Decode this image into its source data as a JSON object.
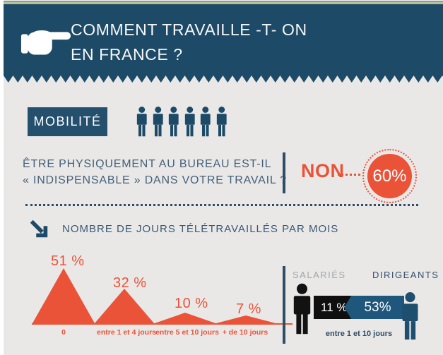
{
  "header": {
    "title_line1": "COMMENT TRAVAILLE -T- ON",
    "title_line2": "EN FRANCE ?"
  },
  "mobility": {
    "label": "MOBILITÉ",
    "people_count": 6,
    "question_line1": "ÊTRE PHYSIQUEMENT AU BUREAU EST-IL",
    "question_line2": "« INDISPENSABLE » DANS VOTRE TRAVAIL ?",
    "answer_label": "NON",
    "answer_value": "60%"
  },
  "telework": {
    "section_title": "NOMBRE DE JOURS TÉLÉTRAVAILLÉS PAR MOIS",
    "comparison": {
      "left_label": "SALARIÉS",
      "right_label": "DIRIGEANTS",
      "left_value": "11 %",
      "right_value": "53%",
      "caption": "entre 1 et 10 jours"
    }
  },
  "chart_data": [
    {
      "type": "bar",
      "mark": "triangle-peaks",
      "title": "NOMBRE DE JOURS TÉLÉTRAVAILLÉS PAR MOIS",
      "categories": [
        "0",
        "entre 1 et 4 jours",
        "entre 5 et 10 jours",
        "+ de 10 jours"
      ],
      "values": [
        51,
        32,
        10,
        7
      ],
      "value_labels": [
        "51 %",
        "32 %",
        "10 %",
        "7 %"
      ],
      "unit": "%",
      "ylim": [
        0,
        51
      ],
      "color": "#eb5338",
      "legend": "none",
      "grid": false
    },
    {
      "type": "bar",
      "title": "entre 1 et 10 jours",
      "categories": [
        "SALARIÉS",
        "DIRIGEANTS"
      ],
      "values": [
        11,
        53
      ],
      "unit": "%",
      "colors": [
        "#0f0f0f",
        "#1f567b"
      ]
    },
    {
      "type": "pie",
      "title": "ÊTRE PHYSIQUEMENT AU BUREAU EST-IL « INDISPENSABLE » DANS VOTRE TRAVAIL ? — NON",
      "values": [
        60
      ],
      "labels": [
        "NON"
      ],
      "unit": "%"
    }
  ],
  "colors": {
    "navy": "#1d4a66",
    "orange": "#eb5338",
    "background": "#e9e8e7",
    "gray_label": "#a6a6a6",
    "black_bar": "#0f0f0f",
    "blue_bar": "#1f567b",
    "green_strip": "#b3c29c"
  }
}
